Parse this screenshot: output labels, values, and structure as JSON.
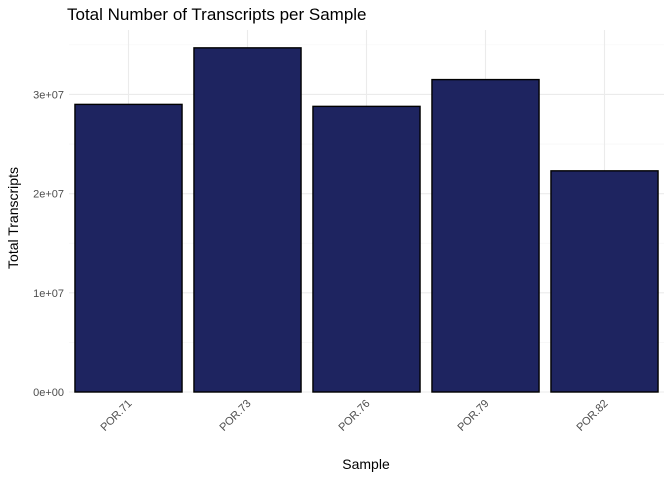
{
  "chart_data": {
    "type": "bar",
    "title": "Total Number of Transcripts per Sample",
    "xlabel": "Sample",
    "ylabel": "Total Transcripts",
    "categories": [
      "POR.71",
      "POR.73",
      "POR.76",
      "POR.79",
      "POR.82"
    ],
    "values": [
      29000000,
      34700000,
      28800000,
      31500000,
      22300000
    ],
    "ylim": [
      0,
      36500000
    ],
    "yticks": [
      0,
      10000000,
      20000000,
      30000000
    ],
    "ytick_labels": [
      "0e+00",
      "1e+07",
      "2e+07",
      "3e+07"
    ],
    "bar_color": "#1e2460",
    "grid": true,
    "legend": "none"
  }
}
